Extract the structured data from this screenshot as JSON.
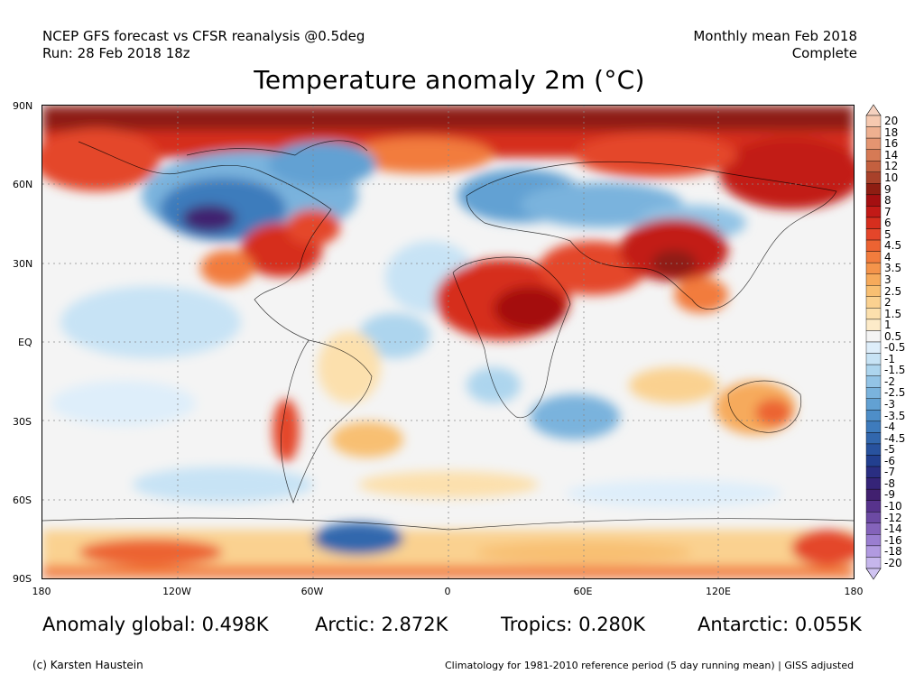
{
  "header": {
    "model_line": "NCEP GFS forecast vs CFSR reanalysis @0.5deg",
    "run_line": "Run: 28 Feb 2018 18z",
    "period_line": "Monthly mean Feb 2018",
    "status_line": "Complete"
  },
  "title": "Temperature anomaly 2m (°C)",
  "map": {
    "lat_labels": [
      "90N",
      "60N",
      "30N",
      "EQ",
      "30S",
      "60S",
      "90S"
    ],
    "lon_labels": [
      "180",
      "120W",
      "60W",
      "0",
      "60E",
      "120E",
      "180"
    ]
  },
  "colorbar": {
    "labels": [
      "20",
      "18",
      "16",
      "14",
      "12",
      "10",
      "9",
      "8",
      "7",
      "6",
      "5",
      "4.5",
      "4",
      "3.5",
      "3",
      "2.5",
      "2",
      "1.5",
      "1",
      "0.5",
      "-0.5",
      "-1",
      "-1.5",
      "-2",
      "-2.5",
      "-3",
      "-3.5",
      "-4",
      "-4.5",
      "-5",
      "-6",
      "-7",
      "-8",
      "-9",
      "-10",
      "-12",
      "-14",
      "-16",
      "-18",
      "-20"
    ],
    "colors": [
      "#f6c9b0",
      "#eeb090",
      "#e49571",
      "#d67a55",
      "#c3603f",
      "#a8412a",
      "#8e1d12",
      "#a40f11",
      "#c21a17",
      "#d62e1e",
      "#e4462a",
      "#ec6332",
      "#f27c3d",
      "#f4944b",
      "#f6aa5b",
      "#f8bf72",
      "#fad190",
      "#fce0ad",
      "#fdebc9",
      "#f4f4f4",
      "#deeefa",
      "#c7e3f5",
      "#add5ee",
      "#93c4e6",
      "#7ab3dd",
      "#62a1d3",
      "#4e8ec8",
      "#3e7bbc",
      "#3267ad",
      "#28529e",
      "#223f8f",
      "#2a2e82",
      "#352478",
      "#41206f",
      "#57338c",
      "#6c4aa3",
      "#8463ba",
      "#9a7ed0",
      "#b19ae0",
      "#c6b6ec"
    ],
    "top_arrow_color": "#f5d1bf",
    "bottom_arrow_color": "#d0c4f2"
  },
  "stats": {
    "global": "Anomaly global: 0.498K",
    "arctic": "Arctic: 2.872K",
    "tropics": "Tropics: 0.280K",
    "antarctic": "Antarctic: 0.055K"
  },
  "footer": {
    "credit": "(c) Karsten Haustein",
    "climatology": "Climatology for 1981-2010 reference period (5 day running mean) | GISS adjusted"
  }
}
